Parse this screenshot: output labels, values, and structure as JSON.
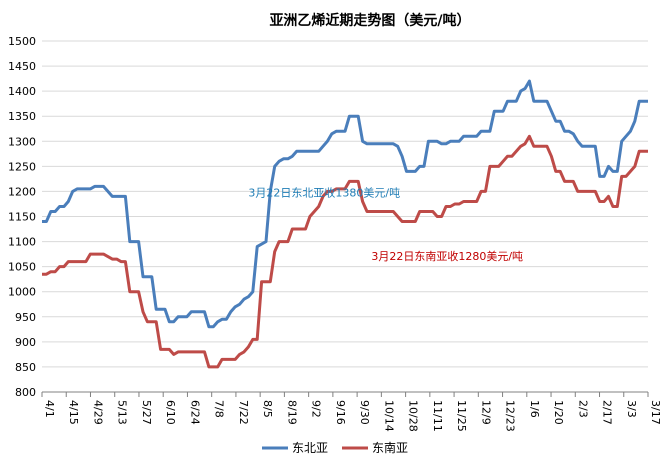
{
  "chart_data": {
    "type": "line",
    "title": "亚洲乙烯近期走势图（美元/吨）",
    "xlabel": "",
    "ylabel": "",
    "ylim": [
      800,
      1500
    ],
    "y_ticks": [
      800,
      850,
      900,
      950,
      1000,
      1050,
      1100,
      1150,
      1200,
      1250,
      1300,
      1350,
      1400,
      1450,
      1500
    ],
    "x_tick_labels": [
      "4/1",
      "4/15",
      "4/29",
      "5/13",
      "5/27",
      "6/10",
      "6/24",
      "7/8",
      "7/22",
      "8/5",
      "8/19",
      "9/2",
      "9/16",
      "9/30",
      "10/14",
      "10/28",
      "11/11",
      "11/25",
      "12/9",
      "12/23",
      "1/6",
      "1/20",
      "2/3",
      "2/17",
      "3/3",
      "3/17"
    ],
    "grid": "horizontal",
    "legend_position": "bottom",
    "series": [
      {
        "name": "东北亚",
        "color": "#4a7ebb",
        "points": [
          [
            0,
            1140
          ],
          [
            1,
            1140
          ],
          [
            2,
            1160
          ],
          [
            3,
            1160
          ],
          [
            4,
            1170
          ],
          [
            5,
            1170
          ],
          [
            6,
            1180
          ],
          [
            7,
            1200
          ],
          [
            8,
            1205
          ],
          [
            9,
            1205
          ],
          [
            10,
            1205
          ],
          [
            11,
            1205
          ],
          [
            12,
            1210
          ],
          [
            13,
            1210
          ],
          [
            14,
            1210
          ],
          [
            15,
            1200
          ],
          [
            16,
            1190
          ],
          [
            17,
            1190
          ],
          [
            18,
            1190
          ],
          [
            19,
            1190
          ],
          [
            20,
            1100
          ],
          [
            21,
            1100
          ],
          [
            22,
            1100
          ],
          [
            23,
            1030
          ],
          [
            24,
            1030
          ],
          [
            25,
            1030
          ],
          [
            26,
            965
          ],
          [
            27,
            965
          ],
          [
            28,
            965
          ],
          [
            29,
            940
          ],
          [
            30,
            940
          ],
          [
            31,
            950
          ],
          [
            32,
            950
          ],
          [
            33,
            950
          ],
          [
            34,
            960
          ],
          [
            35,
            960
          ],
          [
            36,
            960
          ],
          [
            37,
            960
          ],
          [
            38,
            930
          ],
          [
            39,
            930
          ],
          [
            40,
            940
          ],
          [
            41,
            945
          ],
          [
            42,
            945
          ],
          [
            43,
            960
          ],
          [
            44,
            970
          ],
          [
            45,
            975
          ],
          [
            46,
            985
          ],
          [
            47,
            990
          ],
          [
            48,
            1000
          ],
          [
            49,
            1090
          ],
          [
            50,
            1095
          ],
          [
            51,
            1100
          ],
          [
            52,
            1200
          ],
          [
            53,
            1250
          ],
          [
            54,
            1260
          ],
          [
            55,
            1265
          ],
          [
            56,
            1265
          ],
          [
            57,
            1270
          ],
          [
            58,
            1280
          ],
          [
            59,
            1280
          ],
          [
            60,
            1280
          ],
          [
            61,
            1280
          ],
          [
            62,
            1280
          ],
          [
            63,
            1280
          ],
          [
            64,
            1290
          ],
          [
            65,
            1300
          ],
          [
            66,
            1315
          ],
          [
            67,
            1320
          ],
          [
            68,
            1320
          ],
          [
            69,
            1320
          ],
          [
            70,
            1350
          ],
          [
            71,
            1350
          ],
          [
            72,
            1350
          ],
          [
            73,
            1300
          ],
          [
            74,
            1295
          ],
          [
            75,
            1295
          ],
          [
            76,
            1295
          ],
          [
            77,
            1295
          ],
          [
            78,
            1295
          ],
          [
            79,
            1295
          ],
          [
            80,
            1295
          ],
          [
            81,
            1290
          ],
          [
            82,
            1270
          ],
          [
            83,
            1240
          ],
          [
            84,
            1240
          ],
          [
            85,
            1240
          ],
          [
            86,
            1250
          ],
          [
            87,
            1250
          ],
          [
            88,
            1300
          ],
          [
            89,
            1300
          ],
          [
            90,
            1300
          ],
          [
            91,
            1295
          ],
          [
            92,
            1295
          ],
          [
            93,
            1300
          ],
          [
            94,
            1300
          ],
          [
            95,
            1300
          ],
          [
            96,
            1310
          ],
          [
            97,
            1310
          ],
          [
            98,
            1310
          ],
          [
            99,
            1310
          ],
          [
            100,
            1320
          ],
          [
            101,
            1320
          ],
          [
            102,
            1320
          ],
          [
            103,
            1360
          ],
          [
            104,
            1360
          ],
          [
            105,
            1360
          ],
          [
            106,
            1380
          ],
          [
            107,
            1380
          ],
          [
            108,
            1380
          ],
          [
            109,
            1400
          ],
          [
            110,
            1405
          ],
          [
            111,
            1420
          ],
          [
            112,
            1380
          ],
          [
            113,
            1380
          ],
          [
            114,
            1380
          ],
          [
            115,
            1380
          ],
          [
            116,
            1360
          ],
          [
            117,
            1340
          ],
          [
            118,
            1340
          ],
          [
            119,
            1320
          ],
          [
            120,
            1320
          ],
          [
            121,
            1315
          ],
          [
            122,
            1300
          ],
          [
            123,
            1290
          ],
          [
            124,
            1290
          ],
          [
            125,
            1290
          ],
          [
            126,
            1290
          ],
          [
            127,
            1230
          ],
          [
            128,
            1230
          ],
          [
            129,
            1250
          ],
          [
            130,
            1240
          ],
          [
            131,
            1240
          ],
          [
            132,
            1300
          ],
          [
            133,
            1310
          ],
          [
            134,
            1320
          ],
          [
            135,
            1340
          ],
          [
            136,
            1380
          ],
          [
            137,
            1380
          ],
          [
            138,
            1380
          ]
        ]
      },
      {
        "name": "东南亚",
        "color": "#be4b48",
        "points": [
          [
            0,
            1035
          ],
          [
            1,
            1035
          ],
          [
            2,
            1040
          ],
          [
            3,
            1040
          ],
          [
            4,
            1050
          ],
          [
            5,
            1050
          ],
          [
            6,
            1060
          ],
          [
            7,
            1060
          ],
          [
            8,
            1060
          ],
          [
            9,
            1060
          ],
          [
            10,
            1060
          ],
          [
            11,
            1075
          ],
          [
            12,
            1075
          ],
          [
            13,
            1075
          ],
          [
            14,
            1075
          ],
          [
            15,
            1070
          ],
          [
            16,
            1065
          ],
          [
            17,
            1065
          ],
          [
            18,
            1060
          ],
          [
            19,
            1060
          ],
          [
            20,
            1000
          ],
          [
            21,
            1000
          ],
          [
            22,
            1000
          ],
          [
            23,
            960
          ],
          [
            24,
            940
          ],
          [
            25,
            940
          ],
          [
            26,
            940
          ],
          [
            27,
            885
          ],
          [
            28,
            885
          ],
          [
            29,
            885
          ],
          [
            30,
            875
          ],
          [
            31,
            880
          ],
          [
            32,
            880
          ],
          [
            33,
            880
          ],
          [
            34,
            880
          ],
          [
            35,
            880
          ],
          [
            36,
            880
          ],
          [
            37,
            880
          ],
          [
            38,
            850
          ],
          [
            39,
            850
          ],
          [
            40,
            850
          ],
          [
            41,
            865
          ],
          [
            42,
            865
          ],
          [
            43,
            865
          ],
          [
            44,
            865
          ],
          [
            45,
            875
          ],
          [
            46,
            880
          ],
          [
            47,
            890
          ],
          [
            48,
            905
          ],
          [
            49,
            905
          ],
          [
            50,
            1020
          ],
          [
            51,
            1020
          ],
          [
            52,
            1020
          ],
          [
            53,
            1080
          ],
          [
            54,
            1100
          ],
          [
            55,
            1100
          ],
          [
            56,
            1100
          ],
          [
            57,
            1125
          ],
          [
            58,
            1125
          ],
          [
            59,
            1125
          ],
          [
            60,
            1125
          ],
          [
            61,
            1150
          ],
          [
            62,
            1160
          ],
          [
            63,
            1170
          ],
          [
            64,
            1190
          ],
          [
            65,
            1200
          ],
          [
            66,
            1200
          ],
          [
            67,
            1205
          ],
          [
            68,
            1205
          ],
          [
            69,
            1205
          ],
          [
            70,
            1220
          ],
          [
            71,
            1220
          ],
          [
            72,
            1220
          ],
          [
            73,
            1180
          ],
          [
            74,
            1160
          ],
          [
            75,
            1160
          ],
          [
            76,
            1160
          ],
          [
            77,
            1160
          ],
          [
            78,
            1160
          ],
          [
            79,
            1160
          ],
          [
            80,
            1160
          ],
          [
            81,
            1150
          ],
          [
            82,
            1140
          ],
          [
            83,
            1140
          ],
          [
            84,
            1140
          ],
          [
            85,
            1140
          ],
          [
            86,
            1160
          ],
          [
            87,
            1160
          ],
          [
            88,
            1160
          ],
          [
            89,
            1160
          ],
          [
            90,
            1150
          ],
          [
            91,
            1150
          ],
          [
            92,
            1170
          ],
          [
            93,
            1170
          ],
          [
            94,
            1175
          ],
          [
            95,
            1175
          ],
          [
            96,
            1180
          ],
          [
            97,
            1180
          ],
          [
            98,
            1180
          ],
          [
            99,
            1180
          ],
          [
            100,
            1200
          ],
          [
            101,
            1200
          ],
          [
            102,
            1250
          ],
          [
            103,
            1250
          ],
          [
            104,
            1250
          ],
          [
            105,
            1260
          ],
          [
            106,
            1270
          ],
          [
            107,
            1270
          ],
          [
            108,
            1280
          ],
          [
            109,
            1290
          ],
          [
            110,
            1295
          ],
          [
            111,
            1310
          ],
          [
            112,
            1290
          ],
          [
            113,
            1290
          ],
          [
            114,
            1290
          ],
          [
            115,
            1290
          ],
          [
            116,
            1270
          ],
          [
            117,
            1240
          ],
          [
            118,
            1240
          ],
          [
            119,
            1220
          ],
          [
            120,
            1220
          ],
          [
            121,
            1220
          ],
          [
            122,
            1200
          ],
          [
            123,
            1200
          ],
          [
            124,
            1200
          ],
          [
            125,
            1200
          ],
          [
            126,
            1200
          ],
          [
            127,
            1180
          ],
          [
            128,
            1180
          ],
          [
            129,
            1190
          ],
          [
            130,
            1170
          ],
          [
            131,
            1170
          ],
          [
            132,
            1230
          ],
          [
            133,
            1230
          ],
          [
            134,
            1240
          ],
          [
            135,
            1250
          ],
          [
            136,
            1280
          ],
          [
            137,
            1280
          ],
          [
            138,
            1280
          ]
        ]
      }
    ],
    "annotations": [
      {
        "text": "3月22日东北亚收1380美元/吨",
        "series": 0,
        "anchor_x": 47,
        "anchor_y": 1190,
        "color": "#1f7db6"
      },
      {
        "text": "3月22日东南亚收1280美元/吨",
        "series": 1,
        "anchor_x": 75,
        "anchor_y": 1063,
        "color": "#c00000"
      }
    ]
  }
}
